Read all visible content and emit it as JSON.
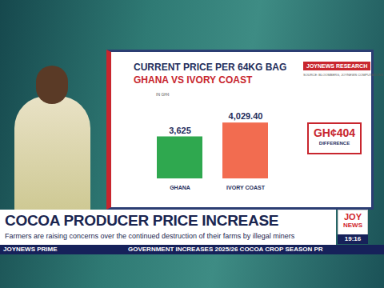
{
  "chart_data": {
    "type": "bar",
    "title": "CURRENT PRICE PER 64KG BAG",
    "subtitle": "GHANA VS IVORY COAST",
    "ylabel": "IN GH¢",
    "source": "SOURCE: BLOOMBERG, JOYNEWS COMPUTATIONS",
    "brand": "JOYNEWS RESEARCH",
    "categories": [
      "GHANA",
      "IVORY COAST"
    ],
    "values": [
      3625,
      4029.4
    ],
    "value_labels": [
      "3,625",
      "4,029.40"
    ],
    "colors": [
      "#2fa84f",
      "#f26c50"
    ],
    "ylim": [
      2400,
      4500
    ],
    "data_labels": true,
    "tick_labels": "x",
    "grid": false,
    "annotation": {
      "label": "GH¢404",
      "caption": "DIFFERENCE"
    }
  },
  "broadcast": {
    "headline": "COCOA PRODUCER PRICE INCREASE",
    "strap": "Farmers are raising concerns over the continued destruction of their farms by illegal miners",
    "show": "JOYNEWS PRIME",
    "ticker": "GOVERNMENT INCREASES 2025/26 COCOA CROP SEASON PR",
    "logo": [
      "JOY",
      "NEWS"
    ],
    "clock": "19:16"
  }
}
